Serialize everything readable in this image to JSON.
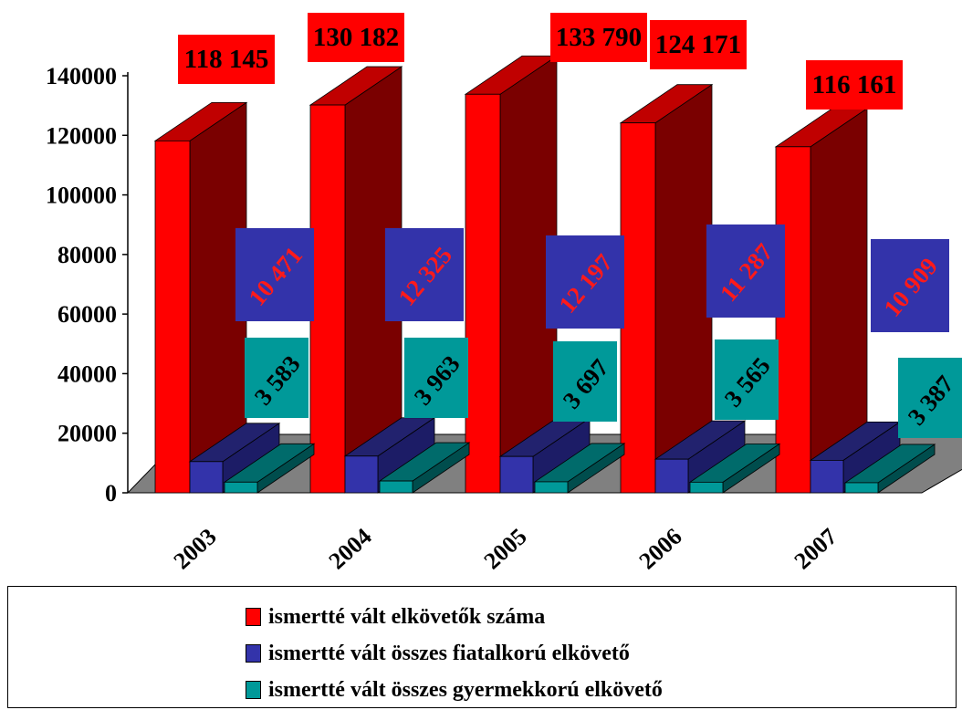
{
  "chart_data": {
    "type": "bar",
    "categories": [
      "2003",
      "2004",
      "2005",
      "2006",
      "2007"
    ],
    "series": [
      {
        "name": "ismertté vált elkövetők száma",
        "values": [
          118145,
          130182,
          133790,
          124171,
          116161
        ],
        "labels": [
          "118 145",
          "130 182",
          "133 790",
          "124 171",
          "116 161"
        ]
      },
      {
        "name": "ismertté vált összes fiatalkorú elkövető",
        "values": [
          10471,
          12325,
          12197,
          11287,
          10909
        ],
        "labels": [
          "10 471",
          "12 325",
          "12 197",
          "11 287",
          "10 909"
        ]
      },
      {
        "name": "ismertté vált összes gyermekkorú elkövető",
        "values": [
          3583,
          3963,
          3697,
          3565,
          3387
        ],
        "labels": [
          "3 583",
          "3 963",
          "3 697",
          "3 565",
          "3 387"
        ]
      }
    ],
    "yticks": [
      "0",
      "20000",
      "40000",
      "60000",
      "80000",
      "100000",
      "120000",
      "140000"
    ],
    "ylim": [
      0,
      140000
    ],
    "legend_position": "bottom",
    "colors": {
      "s0_front": "#ff0000",
      "s0_side": "#7a0000",
      "s0_top": "#c00000",
      "s1_front": "#3333aa",
      "s1_side": "#1c1c66",
      "s1_top": "#22226e",
      "s2_front": "#009999",
      "s2_side": "#004d4d",
      "s2_top": "#006b6b",
      "floor": "#808080",
      "label_red_bg": "#ff0000",
      "label_blue_bg": "#3333aa",
      "label_teal_bg": "#009999",
      "label_blue_text": "#ff1a1a"
    }
  }
}
